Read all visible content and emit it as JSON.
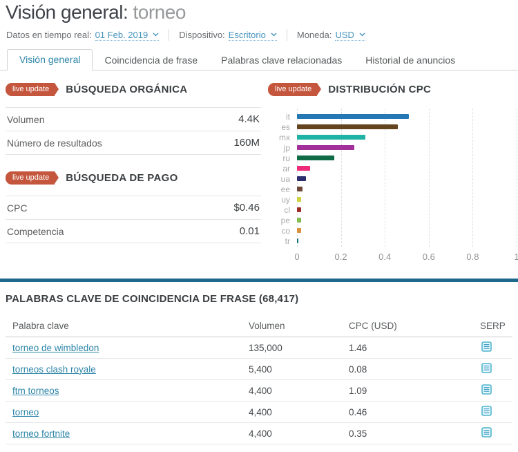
{
  "page": {
    "title_prefix": "Visión general:",
    "title_keyword": "torneo"
  },
  "filters": [
    {
      "label": "Datos en tiempo real:",
      "value": "01 Feb. 2019"
    },
    {
      "label": "Dispositivo:",
      "value": "Escritorio"
    },
    {
      "label": "Moneda:",
      "value": "USD"
    }
  ],
  "tabs": [
    {
      "label": "Visión general",
      "active": true
    },
    {
      "label": "Coincidencia de frase",
      "active": false
    },
    {
      "label": "Palabras clave relacionadas",
      "active": false
    },
    {
      "label": "Historial de anuncios",
      "active": false
    }
  ],
  "organic_search": {
    "badge": "live update",
    "title": "BÚSQUEDA ORGÁNICA",
    "rows": [
      {
        "label": "Volumen",
        "value": "4.4K"
      },
      {
        "label": "Número de resultados",
        "value": "160M"
      }
    ]
  },
  "paid_search": {
    "badge": "live update",
    "title": "BÚSQUEDA DE PAGO",
    "rows": [
      {
        "label": "CPC",
        "value": "$0.46"
      },
      {
        "label": "Competencia",
        "value": "0.01"
      }
    ]
  },
  "chart_data": {
    "type": "bar",
    "orientation": "horizontal",
    "badge": "live update",
    "title": "DISTRIBUCIÓN CPC",
    "categories": [
      "it",
      "es",
      "mx",
      "jp",
      "ru",
      "ar",
      "ua",
      "ee",
      "uy",
      "cl",
      "pe",
      "co",
      "tr"
    ],
    "values": [
      0.51,
      0.46,
      0.31,
      0.26,
      0.17,
      0.06,
      0.04,
      0.025,
      0.02,
      0.02,
      0.02,
      0.02,
      0.007
    ],
    "bar_colors": [
      "#2479b5",
      "#63441f",
      "#1fb3a6",
      "#a1309a",
      "#0f6b46",
      "#ee2a7b",
      "#2b2d6e",
      "#6d4738",
      "#cdd341",
      "#9e2b25",
      "#82bb4f",
      "#d98f40",
      "#186f85"
    ],
    "xlabel": "",
    "ylabel": "",
    "xlim": [
      0,
      1
    ],
    "xticks": [
      0,
      0.2,
      0.4,
      0.6,
      0.8,
      1
    ],
    "xtick_labels": [
      "0",
      "0.2",
      "0.4",
      "0.6",
      "0.8",
      "1"
    ],
    "grid": true,
    "legend": false
  },
  "keywords_section": {
    "title": "PALABRAS CLAVE DE COINCIDENCIA DE FRASE (68,417)",
    "columns": [
      "Palabra clave",
      "Volumen",
      "CPC (USD)",
      "SERP"
    ],
    "rows": [
      {
        "keyword": "torneo de wimbledon",
        "volume": "135,000",
        "cpc": "1.46",
        "serp_icon": "serp-list-icon"
      },
      {
        "keyword": "torneos clash royale",
        "volume": "5,400",
        "cpc": "0.08",
        "serp_icon": "serp-list-icon"
      },
      {
        "keyword": "ftm torneos",
        "volume": "4,400",
        "cpc": "1.09",
        "serp_icon": "serp-list-icon"
      },
      {
        "keyword": "torneo",
        "volume": "4,400",
        "cpc": "0.46",
        "serp_icon": "serp-list-icon"
      },
      {
        "keyword": "torneo fortnite",
        "volume": "4,400",
        "cpc": "0.35",
        "serp_icon": "serp-list-icon"
      }
    ]
  },
  "colors": {
    "accent_link": "#2e86a8",
    "filter_link": "#4593be",
    "live_badge": "#c4563d",
    "divider_bar": "#1d688c",
    "serp_icon_stroke": "#4fb4cf",
    "serp_icon_fill": "#e6f7fb"
  }
}
